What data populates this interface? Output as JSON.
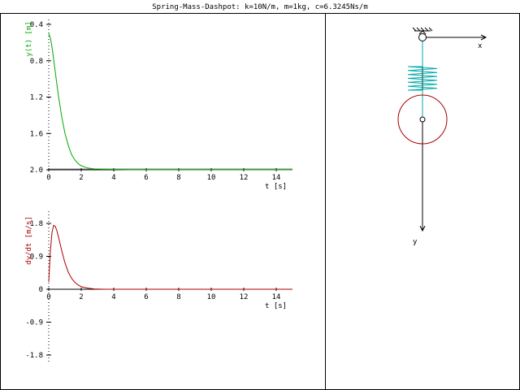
{
  "title": "Spring-Mass-Dashpot: k=10N/m, m=1kg, c=6.3245Ns/m",
  "colors": {
    "position_curve": "#00aa00",
    "velocity_curve": "#aa0000",
    "spring": "#00aaaa",
    "mass": "#aa0000",
    "frame": "#000000"
  },
  "chart_data": [
    {
      "type": "line",
      "xlabel": "t [s]",
      "ylabel": "y(t) [m]",
      "xlim": [
        0,
        15
      ],
      "ylim": [
        0.4,
        2.0
      ],
      "y_inverted": true,
      "x_ticks": [
        0,
        2,
        4,
        6,
        8,
        10,
        12,
        14
      ],
      "y_ticks": [
        0.4,
        0.8,
        1.2,
        1.6,
        2.0
      ],
      "y_tick_labels": [
        "0.4",
        "0.8",
        "1.2",
        "1.6",
        "2.0"
      ],
      "series": [
        {
          "x": [
            0,
            0.1,
            0.2,
            0.3,
            0.4,
            0.5,
            0.6,
            0.8,
            1.0,
            1.2,
            1.4,
            1.6,
            1.8,
            2.0,
            2.4,
            2.8,
            3.5,
            5,
            8,
            12,
            15
          ],
          "values": [
            0.5,
            0.55,
            0.65,
            0.78,
            0.92,
            1.06,
            1.19,
            1.42,
            1.6,
            1.73,
            1.83,
            1.89,
            1.93,
            1.955,
            1.98,
            1.99,
            1.995,
            2.0,
            2.0,
            2.0,
            2.0
          ]
        }
      ]
    },
    {
      "type": "line",
      "xlabel": "t [s]",
      "ylabel": "dy/dt [m/s]",
      "xlim": [
        0,
        15
      ],
      "ylim": [
        -2.0,
        2.0
      ],
      "x_ticks": [
        0,
        2,
        4,
        6,
        8,
        10,
        12,
        14
      ],
      "y_ticks": [
        1.8,
        0.9,
        0,
        -0.9,
        -1.8
      ],
      "y_tick_labels": [
        "1.8",
        "0.9",
        "0",
        "-0.9",
        "-1.8"
      ],
      "series": [
        {
          "x": [
            0,
            0.1,
            0.2,
            0.3,
            0.4,
            0.5,
            0.6,
            0.8,
            1.0,
            1.2,
            1.4,
            1.6,
            1.8,
            2.0,
            2.4,
            2.8,
            3.5,
            5,
            8,
            12,
            15
          ],
          "values": [
            0.2,
            1.05,
            1.55,
            1.75,
            1.72,
            1.6,
            1.43,
            1.05,
            0.72,
            0.47,
            0.3,
            0.19,
            0.12,
            0.07,
            0.03,
            0.01,
            0.0,
            0.0,
            0.0,
            0.0,
            0.0
          ]
        }
      ]
    }
  ],
  "diagram": {
    "x_label": "x",
    "y_label": "y"
  }
}
